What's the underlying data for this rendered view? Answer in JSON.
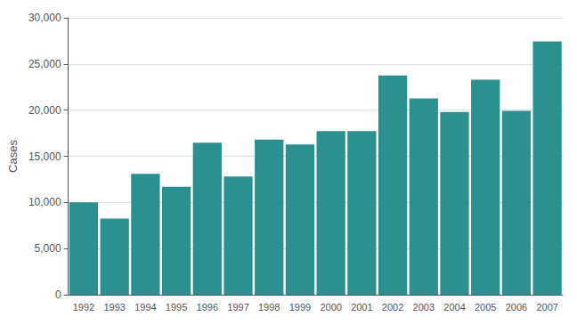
{
  "chart_data": {
    "type": "bar",
    "ylabel": "Cases",
    "categories": [
      "1992",
      "1993",
      "1994",
      "1995",
      "1996",
      "1997",
      "1998",
      "1999",
      "2000",
      "2001",
      "2002",
      "2003",
      "2004",
      "2005",
      "2006",
      "2007"
    ],
    "values": [
      10006,
      8257,
      13083,
      11700,
      16461,
      12801,
      16801,
      16273,
      17730,
      17730,
      23763,
      21273,
      19804,
      23305,
      19931,
      27444
    ],
    "color": "#2a9090",
    "ylim": [
      0,
      30000
    ],
    "yticks": [
      0,
      {
        "value": 5000,
        "label": "5,000"
      },
      {
        "value": 10000,
        "label": "10,000"
      },
      {
        "value": 15000,
        "label": "15,000"
      },
      {
        "value": 20000,
        "label": "20,000"
      },
      {
        "value": 25000,
        "label": "25,000"
      },
      {
        "value": 30000,
        "label": "30,000"
      }
    ],
    "grid": true
  }
}
